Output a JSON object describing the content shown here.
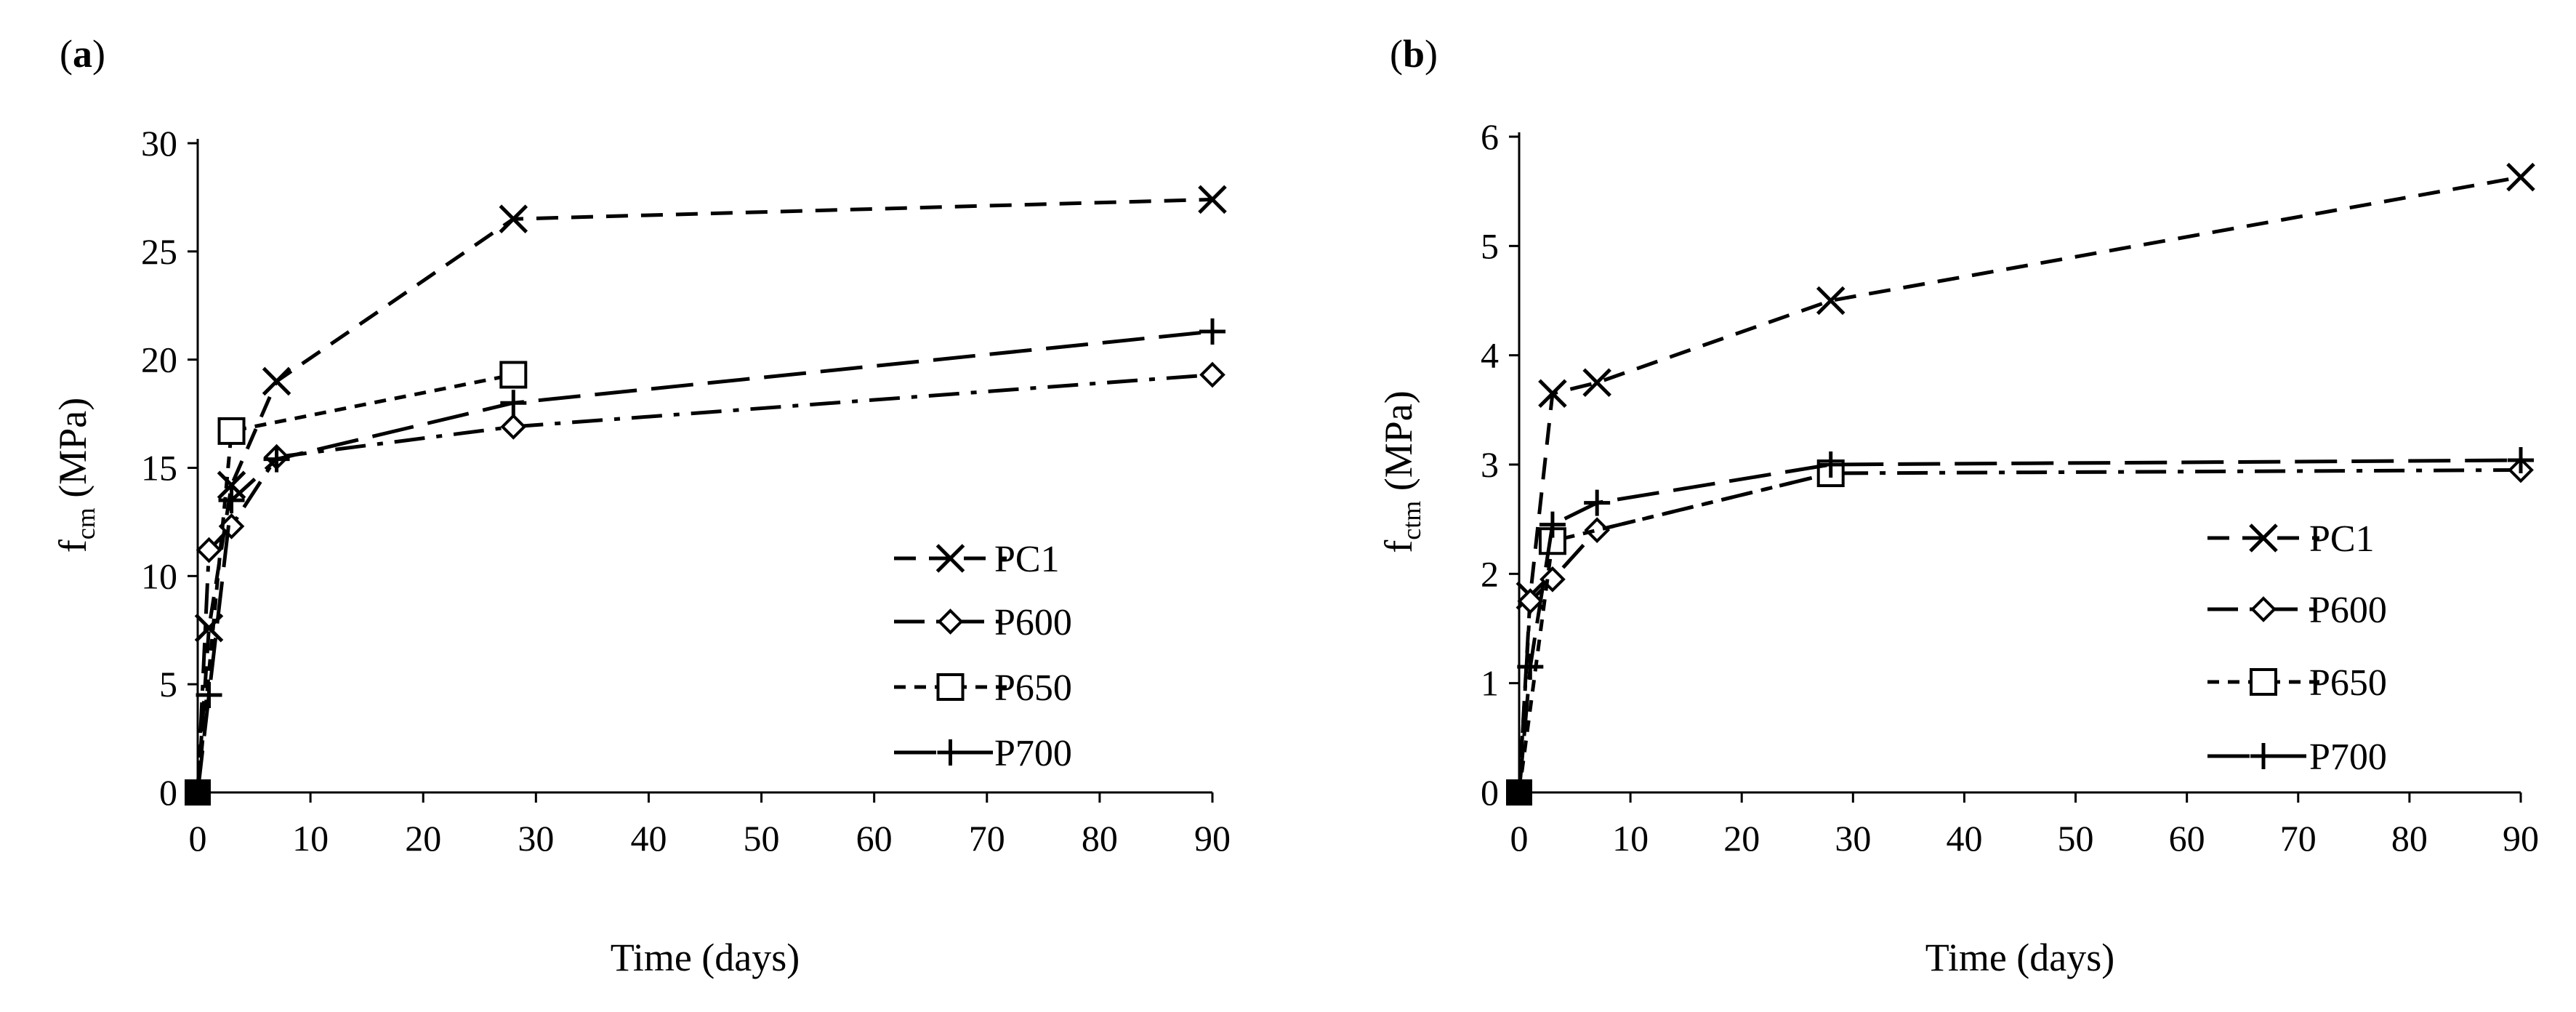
{
  "chart_data": [
    {
      "type": "line",
      "panel_label": "(a)",
      "panel_label_letter": "a",
      "panel_label_open": "(",
      "panel_label_close": ")",
      "xlabel": "Time (days)",
      "ylabel_main": "f",
      "ylabel_sub": "cm",
      "ylabel_unit": " (MPa)",
      "xlim": [
        0,
        90
      ],
      "ylim": [
        0,
        30
      ],
      "xticks": [
        0,
        10,
        20,
        30,
        40,
        50,
        60,
        70,
        80,
        90
      ],
      "yticks": [
        0,
        5,
        10,
        15,
        20,
        25,
        30
      ],
      "legend_position": "lower-right",
      "series": [
        {
          "name": "PC1",
          "marker": "x",
          "dash": "dash",
          "x": [
            0,
            1,
            3,
            7,
            28,
            90
          ],
          "y": [
            0,
            7.6,
            14.2,
            19.0,
            26.5,
            27.4
          ]
        },
        {
          "name": "P600",
          "marker": "diamond",
          "dash": "dashdot",
          "x": [
            0,
            1,
            3,
            7,
            28,
            90
          ],
          "y": [
            0,
            11.2,
            12.3,
            15.5,
            16.9,
            19.3
          ]
        },
        {
          "name": "P650",
          "marker": "square",
          "dash": "dotted",
          "x": [
            0,
            3,
            28
          ],
          "y": [
            0,
            16.7,
            19.3
          ]
        },
        {
          "name": "P700",
          "marker": "plus",
          "dash": "longdash",
          "x": [
            0,
            1,
            3,
            7,
            28,
            90
          ],
          "y": [
            0,
            4.5,
            13.5,
            15.4,
            18.0,
            21.3
          ]
        }
      ]
    },
    {
      "type": "line",
      "panel_label": "(b)",
      "panel_label_letter": "b",
      "panel_label_open": "(",
      "panel_label_close": ")",
      "xlabel": "Time (days)",
      "ylabel_main": "f",
      "ylabel_sub": "ctm",
      "ylabel_unit": " (MPa)",
      "xlim": [
        0,
        90
      ],
      "ylim": [
        0,
        6
      ],
      "xticks": [
        0,
        10,
        20,
        30,
        40,
        50,
        60,
        70,
        80,
        90
      ],
      "yticks": [
        0,
        1,
        2,
        3,
        4,
        5,
        6
      ],
      "legend_position": "lower-right",
      "series": [
        {
          "name": "PC1",
          "marker": "x",
          "dash": "dash",
          "x": [
            0,
            1,
            3,
            7,
            28,
            90
          ],
          "y": [
            0,
            1.8,
            3.65,
            3.75,
            4.5,
            5.63
          ]
        },
        {
          "name": "P600",
          "marker": "diamond",
          "dash": "dashdot",
          "x": [
            0,
            1,
            3,
            7,
            28,
            90
          ],
          "y": [
            0,
            1.75,
            1.95,
            2.4,
            2.92,
            2.95
          ]
        },
        {
          "name": "P650",
          "marker": "square",
          "dash": "dotted",
          "x": [
            0,
            3,
            28
          ],
          "y": [
            0,
            2.3,
            2.92
          ]
        },
        {
          "name": "P700",
          "marker": "plus",
          "dash": "longdash",
          "x": [
            0,
            1,
            3,
            7,
            28,
            90
          ],
          "y": [
            0,
            1.15,
            2.45,
            2.65,
            3.0,
            3.04
          ]
        }
      ]
    }
  ]
}
